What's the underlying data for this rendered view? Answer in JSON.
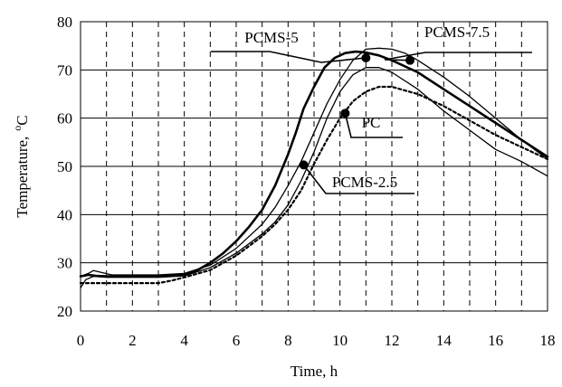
{
  "chart_data": {
    "type": "line",
    "xlabel": "Time, h",
    "ylabel": "Temperature,",
    "ylabel_unit": "oC",
    "xlim": [
      0,
      18
    ],
    "ylim": [
      20,
      80
    ],
    "x_ticks": [
      0,
      2,
      4,
      6,
      8,
      10,
      12,
      14,
      16,
      18
    ],
    "y_ticks": [
      20,
      30,
      40,
      50,
      60,
      70,
      80
    ],
    "x_ticks_text": [
      "0",
      "2",
      "4",
      "6",
      "8",
      "10",
      "12",
      "14",
      "16",
      "18"
    ],
    "y_ticks_text": [
      "20",
      "30",
      "40",
      "50",
      "60",
      "70",
      "80"
    ],
    "grid": {
      "horizontal": "solid",
      "vertical": "dashed",
      "vertical_step": 1
    },
    "series": [
      {
        "name": "PCMS-5",
        "style": "thick",
        "x": [
          0,
          0.3,
          0.6,
          1,
          2,
          3,
          4,
          4.5,
          5,
          5.5,
          6,
          6.5,
          7,
          7.5,
          8,
          8.3,
          8.6,
          9,
          9.4,
          9.8,
          10.2,
          10.6,
          11,
          11.5,
          12,
          13,
          14,
          15,
          16,
          17,
          18
        ],
        "y": [
          27.2,
          27.5,
          27.3,
          27.2,
          27.2,
          27.2,
          27.6,
          28.5,
          30,
          32,
          34.5,
          37.5,
          41,
          46,
          52.5,
          57,
          62,
          66.5,
          70.5,
          72.5,
          73.5,
          73.8,
          73.6,
          73,
          72,
          69.5,
          66,
          62.5,
          59,
          55.5,
          52
        ]
      },
      {
        "name": "PCMS-7.5",
        "style": "thin",
        "x": [
          0,
          0.3,
          0.5,
          0.8,
          1.2,
          2,
          3,
          4,
          5,
          6,
          7,
          7.5,
          8,
          8.5,
          9,
          9.5,
          10,
          10.5,
          11,
          11.5,
          12,
          12.5,
          13,
          14,
          15,
          16,
          17,
          18
        ],
        "y": [
          27.2,
          27.8,
          28.4,
          28,
          27.5,
          27.5,
          27.5,
          27.8,
          29.5,
          33,
          38,
          41.5,
          46,
          51,
          57,
          63,
          68,
          72,
          74.3,
          74.5,
          74.3,
          73.5,
          72,
          68.5,
          64.5,
          60,
          55.5,
          51.5
        ]
      },
      {
        "name": "PCMS-2.5",
        "style": "thin",
        "x": [
          0,
          0.2,
          0.5,
          1,
          2,
          3,
          4,
          5,
          6,
          7,
          7.5,
          8,
          8.5,
          9,
          9.5,
          10,
          10.5,
          11,
          11.5,
          12,
          13,
          14,
          15,
          16,
          17,
          18
        ],
        "y": [
          24.8,
          26.5,
          27.2,
          27,
          27,
          27,
          27.3,
          29,
          32,
          36,
          38.5,
          42,
          47,
          53,
          60,
          65.5,
          69,
          70.5,
          70.5,
          69.5,
          66,
          61.5,
          57.5,
          53.5,
          51,
          48
        ]
      },
      {
        "name": "PC",
        "style": "dashed",
        "x": [
          0,
          1,
          2,
          3,
          3.5,
          4,
          5,
          6,
          7,
          7.5,
          8,
          8.5,
          9,
          9.5,
          10,
          10.5,
          11,
          11.5,
          12,
          13,
          14,
          15,
          16,
          17,
          18
        ],
        "y": [
          25.8,
          25.8,
          25.8,
          25.8,
          26.3,
          27,
          28.5,
          31.5,
          35.5,
          38,
          41,
          45,
          50.5,
          55.5,
          60,
          63.5,
          65.5,
          66.5,
          66.5,
          65,
          62.5,
          59.5,
          56.5,
          54,
          51.5
        ]
      }
    ],
    "annotations": [
      {
        "text": "PCMS-5",
        "point": [
          11,
          72.5
        ]
      },
      {
        "text": "PCMS-7.5",
        "point": [
          12.7,
          72
        ]
      },
      {
        "text": "PC",
        "point": [
          10.2,
          61
        ]
      },
      {
        "text": "PCMS-2.5",
        "point": [
          8.6,
          50.3
        ]
      }
    ]
  }
}
